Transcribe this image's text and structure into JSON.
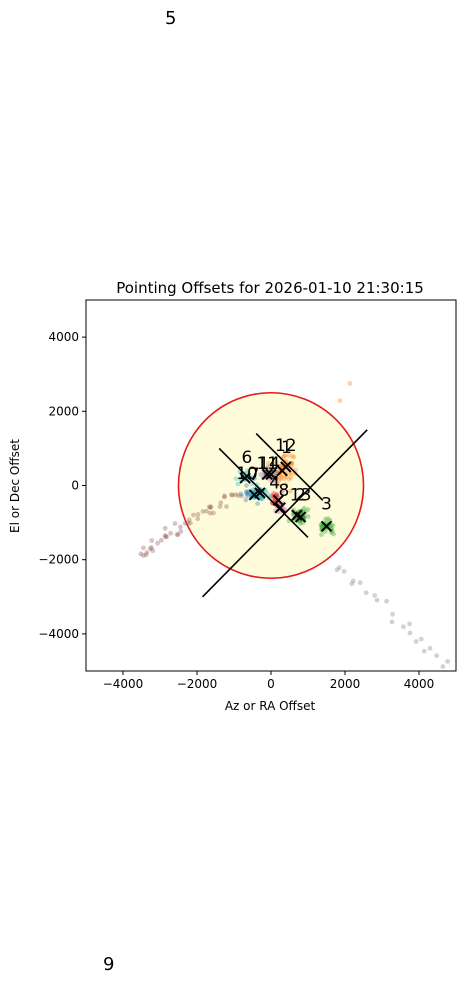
{
  "corner_labels": {
    "top": "5",
    "bottom": "9"
  },
  "chart_data": {
    "type": "scatter",
    "title": "Pointing Offsets for 2026-01-10 21:30:15",
    "xlabel": "Az or RA Offset",
    "ylabel": "El or Dec Offset",
    "xlim": [
      -5000,
      5000
    ],
    "ylim": [
      -5000,
      5000
    ],
    "xticks": [
      -4000,
      -2000,
      0,
      2000,
      4000
    ],
    "yticks": [
      -4000,
      -2000,
      0,
      2000,
      4000
    ],
    "xtick_labels": [
      "−4000",
      "−2000",
      "0",
      "2000",
      "4000"
    ],
    "ytick_labels": [
      "−4000",
      "−2000",
      "0",
      "2000",
      "4000"
    ],
    "grid": false,
    "colors": {
      "circle_edge": "#e41a1c",
      "circle_fill": "#fffcdc",
      "marker": "#000000"
    },
    "target_circle": {
      "center": [
        0,
        0
      ],
      "radius": 2500
    },
    "guide_lines": [
      {
        "from": [
          -1850,
          -3000
        ],
        "to": [
          2600,
          1500
        ]
      },
      {
        "from": [
          -1400,
          1000
        ],
        "to": [
          1000,
          -1400
        ]
      },
      {
        "from": [
          -400,
          1400
        ],
        "to": [
          1400,
          -400
        ]
      }
    ],
    "groups": [
      {
        "id": "1",
        "color": "#ff7f0e",
        "center": [
          300,
          400
        ],
        "spread": [
          350,
          450
        ],
        "n": 30,
        "label_at": [
          420,
          880
        ]
      },
      {
        "id": "2",
        "color": "#2ca02c",
        "center": [
          800,
          -850
        ],
        "spread": [
          250,
          200
        ],
        "n": 25,
        "label_at": [
          800,
          -400
        ]
      },
      {
        "id": "3",
        "color": "#2ca02c",
        "center": [
          1500,
          -1100
        ],
        "spread": [
          250,
          200
        ],
        "n": 28,
        "label_at": [
          1500,
          -650
        ]
      },
      {
        "id": "4",
        "color": "#d62728",
        "center": [
          200,
          -400
        ],
        "spread": [
          200,
          200
        ],
        "n": 20,
        "label_at": [
          100,
          -80
        ]
      },
      {
        "id": "6",
        "color": "#17becf",
        "center": [
          -700,
          200
        ],
        "spread": [
          250,
          200
        ],
        "n": 20,
        "label_at": [
          -650,
          600
        ]
      },
      {
        "id": "7",
        "color": "#1f77b4",
        "center": [
          -450,
          -250
        ],
        "spread": [
          300,
          200
        ],
        "n": 25,
        "label_at": [
          -450,
          150
        ]
      },
      {
        "id": "8",
        "color": "#e377c2",
        "center": [
          250,
          -600
        ],
        "spread": [
          200,
          150
        ],
        "n": 15,
        "label_at": [
          350,
          -280
        ]
      },
      {
        "id": "10",
        "color": "#17becf",
        "center": [
          -300,
          -200
        ],
        "spread": [
          300,
          200
        ],
        "n": 25,
        "label_at": [
          -650,
          180
        ]
      },
      {
        "id": "11",
        "color": "#9467bd",
        "center": [
          -100,
          300
        ],
        "spread": [
          200,
          200
        ],
        "n": 15,
        "label_at": [
          -100,
          450
        ]
      },
      {
        "id": "12",
        "color": "#ff7f0e",
        "center": [
          400,
          500
        ],
        "spread": [
          300,
          300
        ],
        "n": 20,
        "label_at": [
          400,
          930
        ]
      },
      {
        "id": "13",
        "color": "#2ca02c",
        "center": [
          700,
          -800
        ],
        "spread": [
          250,
          200
        ],
        "n": 20,
        "label_at": [
          800,
          -400
        ]
      },
      {
        "id": "14",
        "color": "#8c564b",
        "center": [
          0,
          300
        ],
        "spread": [
          200,
          200
        ],
        "n": 15,
        "label_at": [
          -50,
          450
        ]
      }
    ],
    "tails": [
      {
        "color": "#8c564b",
        "from": [
          -3600,
          -1900
        ],
        "to": [
          -900,
          -150
        ],
        "n": 45
      },
      {
        "color": "#7f7f7f",
        "from": [
          1800,
          -2100
        ],
        "to": [
          4800,
          -4900
        ],
        "n": 22
      },
      {
        "color": "#ff7f0e",
        "from": [
          1900,
          2300
        ],
        "to": [
          2050,
          2650
        ],
        "n": 2
      }
    ]
  }
}
